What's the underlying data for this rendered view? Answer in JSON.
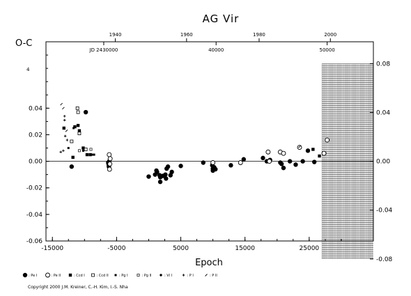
{
  "chart_data": {
    "type": "scatter",
    "title": "AG Vir",
    "xlabel": "Epoch",
    "ylabel": "O-C",
    "xlim": [
      -16000,
      35000
    ],
    "ylim": [
      -0.06,
      0.09
    ],
    "xticks": [
      -15000,
      -5000,
      5000,
      15000,
      25000
    ],
    "xtick_labels": [
      "-15000",
      "-5000",
      "5000",
      "15000",
      "25000"
    ],
    "yticks_left": [
      -0.06,
      -0.04,
      -0.02,
      0.0,
      0.02,
      0.04
    ],
    "ytick_labels_left": [
      "-0.06",
      "-0.04",
      "-0.02",
      "0.00",
      "0.02",
      "0.04"
    ],
    "yticks_right": [
      -0.08,
      -0.04,
      0.0,
      0.04,
      0.08
    ],
    "ytick_labels_right": [
      "-0.08",
      "-0.04",
      "0.00",
      "0.04",
      "0.08"
    ],
    "right_axis_scale": [
      -0.08,
      0.08
    ],
    "top_year_ticks": [
      {
        "label": "1940",
        "epoch": -5200
      },
      {
        "label": "1960",
        "epoch": 5900
      },
      {
        "label": "1980",
        "epoch": 17200
      },
      {
        "label": "2000",
        "epoch": 28300
      }
    ],
    "top_jd_labels": [
      {
        "label": "JD 2430000",
        "epoch": -7000
      },
      {
        "label": "40000",
        "epoch": 10500
      },
      {
        "label": "50000",
        "epoch": 27800
      }
    ],
    "top_left_mark": "4",
    "grid": false,
    "hatched_region": [
      27000,
      35000
    ],
    "series": [
      {
        "name": ": Pe I",
        "marker": "filled-circle",
        "points": [
          [
            -12000,
            -0.004
          ],
          [
            -9800,
            0.037
          ],
          [
            -6300,
            -0.001
          ],
          [
            -6250,
            -0.002
          ],
          [
            -6200,
            -0.003
          ],
          [
            -6200,
            -0.004
          ],
          [
            -6150,
            0.0
          ],
          [
            0,
            -0.0115
          ],
          [
            1000,
            -0.01
          ],
          [
            1200,
            -0.007
          ],
          [
            1300,
            -0.008
          ],
          [
            1700,
            -0.0105
          ],
          [
            1800,
            -0.012
          ],
          [
            1800,
            -0.0155
          ],
          [
            2200,
            -0.011
          ],
          [
            2600,
            -0.01
          ],
          [
            2700,
            -0.013
          ],
          [
            2800,
            -0.0055
          ],
          [
            3000,
            -0.004
          ],
          [
            3400,
            -0.0105
          ],
          [
            3600,
            -0.008
          ],
          [
            5000,
            -0.0035
          ],
          [
            8500,
            -0.001
          ],
          [
            9900,
            -0.003
          ],
          [
            10000,
            -0.0055
          ],
          [
            10000,
            -0.007
          ],
          [
            10200,
            -0.0045
          ],
          [
            10400,
            -0.006
          ],
          [
            12800,
            -0.003
          ],
          [
            14800,
            0.0015
          ],
          [
            17800,
            0.0025
          ],
          [
            18400,
            0.0
          ],
          [
            18900,
            0.001
          ],
          [
            20500,
            -0.001
          ],
          [
            20700,
            -0.002
          ],
          [
            21000,
            -0.005
          ],
          [
            22000,
            0.0
          ],
          [
            22900,
            -0.0025
          ],
          [
            24000,
            0.0
          ],
          [
            25800,
            -0.0005
          ],
          [
            24800,
            0.008
          ]
        ]
      },
      {
        "name": ": Pe II",
        "marker": "open-circle",
        "points": [
          [
            -6150,
            0.005
          ],
          [
            -6100,
            -0.006
          ],
          [
            -6050,
            -0.002
          ],
          [
            -6000,
            0.002
          ],
          [
            10000,
            -0.001
          ],
          [
            14300,
            -0.001
          ],
          [
            18600,
            0.007
          ],
          [
            18800,
            0.0
          ],
          [
            20500,
            0.007
          ],
          [
            21000,
            0.006
          ],
          [
            23500,
            0.0105
          ],
          [
            27300,
            0.006
          ],
          [
            27800,
            0.016
          ]
        ]
      },
      {
        "name": ": Ccd I",
        "marker": "filled-square",
        "points": [
          [
            -13200,
            0.025
          ],
          [
            -11800,
            0.003
          ],
          [
            -11500,
            0.026
          ],
          [
            -11000,
            0.027
          ],
          [
            -10800,
            0.023
          ],
          [
            -10200,
            0.01
          ],
          [
            -9600,
            0.005
          ],
          [
            -9100,
            0.005
          ],
          [
            25600,
            0.009
          ],
          [
            26600,
            0.004
          ]
        ]
      },
      {
        "name": ": Ccd II",
        "marker": "open-square",
        "points": [
          [
            -11100,
            0.04
          ],
          [
            -11000,
            0.037
          ],
          [
            -10800,
            0.021
          ],
          [
            -9800,
            0.009
          ],
          [
            -12000,
            0.015
          ]
        ]
      },
      {
        "name": ": Pg I",
        "marker": "small-filled-square",
        "points": [
          [
            -12500,
            0.01
          ],
          [
            -11700,
            0.025
          ],
          [
            -8800,
            0.005
          ],
          [
            -8500,
            0.005
          ]
        ]
      },
      {
        "name": ": Pg II",
        "marker": "small-open-square",
        "points": [
          [
            -10800,
            0.008
          ],
          [
            -9000,
            0.009
          ]
        ]
      },
      {
        "name": ": Vi I",
        "marker": "small-filled-circle",
        "points": [
          [
            -10200,
            0.008
          ]
        ]
      },
      {
        "name": ": P I",
        "marker": "plus",
        "points": [
          [
            -13700,
            0.007
          ],
          [
            -13300,
            0.008
          ],
          [
            -13100,
            0.034
          ],
          [
            -13100,
            0.031
          ],
          [
            -13000,
            0.019
          ],
          [
            -12700,
            0.016
          ]
        ]
      },
      {
        "name": ": P II",
        "marker": "cross",
        "points": [
          [
            -13600,
            0.043
          ],
          [
            -13300,
            0.04
          ],
          [
            -12800,
            0.023
          ],
          [
            23500,
            0.011
          ]
        ]
      }
    ]
  },
  "copyright": "Copyright 2000 J.M. Kreiner, C.-H. Kim, I.-S. Nha"
}
